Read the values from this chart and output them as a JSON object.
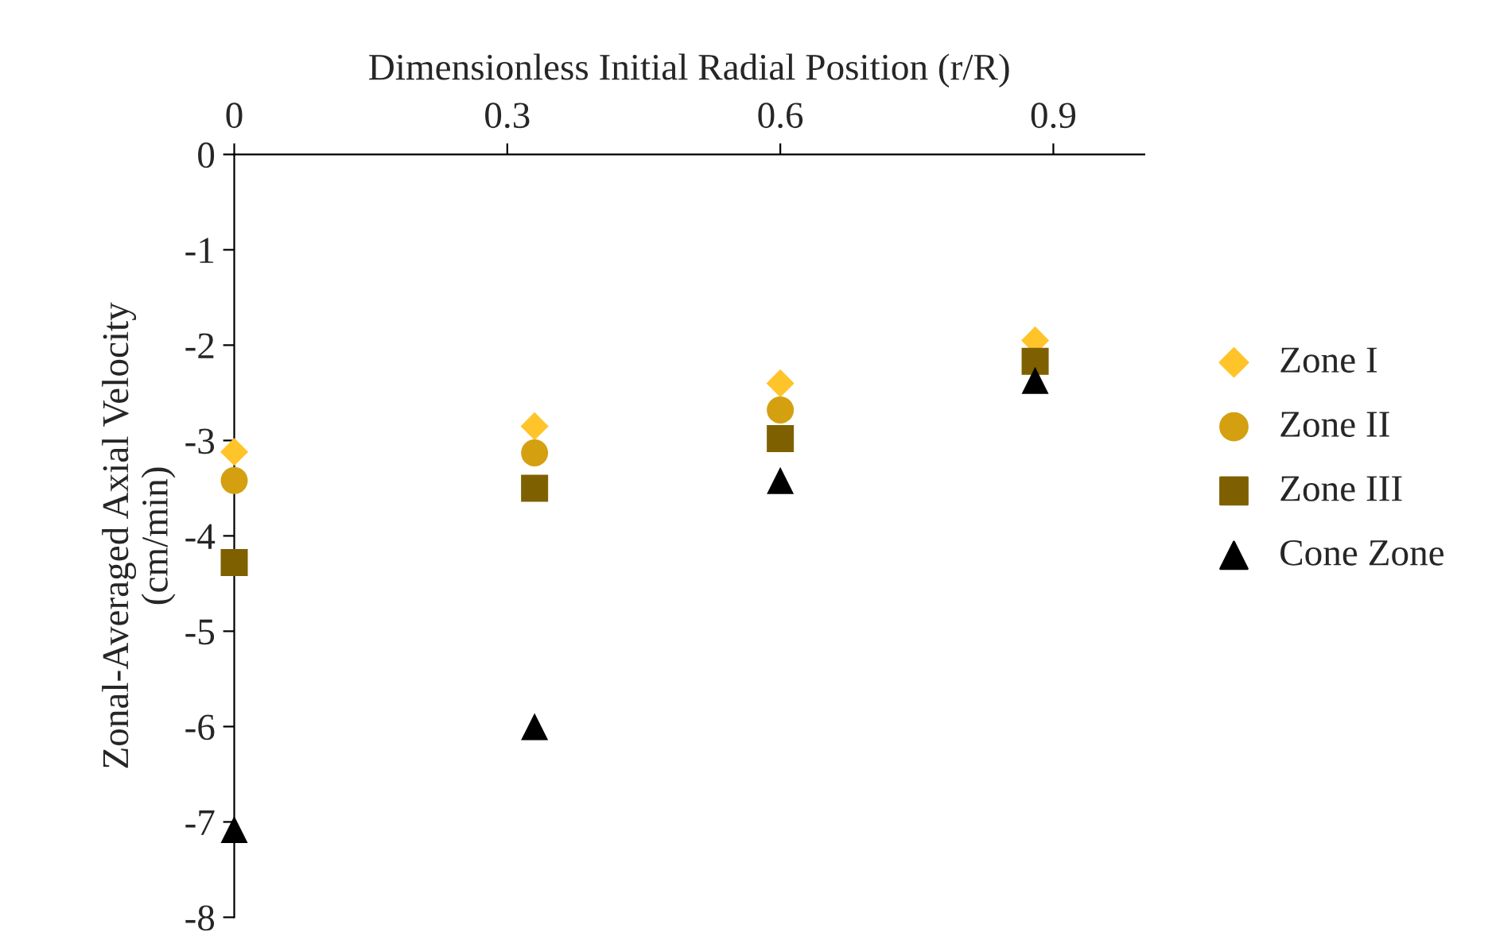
{
  "chart_data": {
    "type": "scatter",
    "xlabel": "Dimensionless Initial Radial Position (r/R)",
    "ylabel": "Zonal-Averaged Axial Velocity\n(cm/min)",
    "x": [
      0,
      0.33,
      0.6,
      0.88
    ],
    "series": [
      {
        "name": "Zone I",
        "color": "#ffc42a",
        "marker": "diamond",
        "values": [
          -3.12,
          -2.85,
          -2.4,
          -1.95
        ]
      },
      {
        "name": "Zone II",
        "color": "#d4a010",
        "marker": "circle",
        "values": [
          -3.42,
          -3.13,
          -2.68,
          null
        ]
      },
      {
        "name": "Zone III",
        "color": "#7f6000",
        "marker": "square",
        "values": [
          -4.28,
          -3.5,
          -2.98,
          -2.17
        ]
      },
      {
        "name": "Cone Zone",
        "color": "#000000",
        "marker": "triangle",
        "values": [
          -7.08,
          -6.0,
          -3.42,
          -2.37
        ]
      }
    ],
    "xlim": [
      0,
      1
    ],
    "xticks": [
      0,
      0.3,
      0.6,
      0.9
    ],
    "ylim": [
      -8,
      0
    ],
    "yticks": [
      -8,
      -7,
      -6,
      -5,
      -4,
      -3,
      -2,
      -1,
      0
    ],
    "grid": false,
    "legend": "right"
  }
}
